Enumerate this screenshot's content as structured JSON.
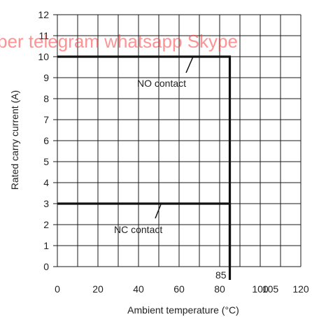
{
  "chart_data": {
    "type": "line",
    "xlabel": "Ambient temperature (°C)",
    "ylabel": "Rated carry current (A)",
    "xlim": [
      0,
      120
    ],
    "ylim": [
      0,
      12
    ],
    "x_ticks": [
      "0",
      "20",
      "40",
      "60",
      "80",
      "100",
      "105",
      "120"
    ],
    "y_ticks": [
      "0",
      "1",
      "2",
      "3",
      "4",
      "5",
      "6",
      "7",
      "8",
      "9",
      "10",
      "11",
      "12"
    ],
    "grid": true,
    "series": [
      {
        "name": "NO contact",
        "x": [
          0,
          85,
          85
        ],
        "y": [
          10,
          10,
          0
        ]
      },
      {
        "name": "NC contact",
        "x": [
          0,
          85,
          85
        ],
        "y": [
          3,
          3,
          0
        ]
      }
    ],
    "annotations": [
      {
        "text": "NO contact",
        "target_x": 70,
        "target_y": 10
      },
      {
        "text": "NC contact",
        "target_x": 57,
        "target_y": 3
      },
      {
        "text": "85",
        "target_x": 85,
        "target_y": 0
      }
    ]
  },
  "watermark": {
    "text": "ber telegram whatsapp Skype",
    "color": "#ff3b3b"
  }
}
